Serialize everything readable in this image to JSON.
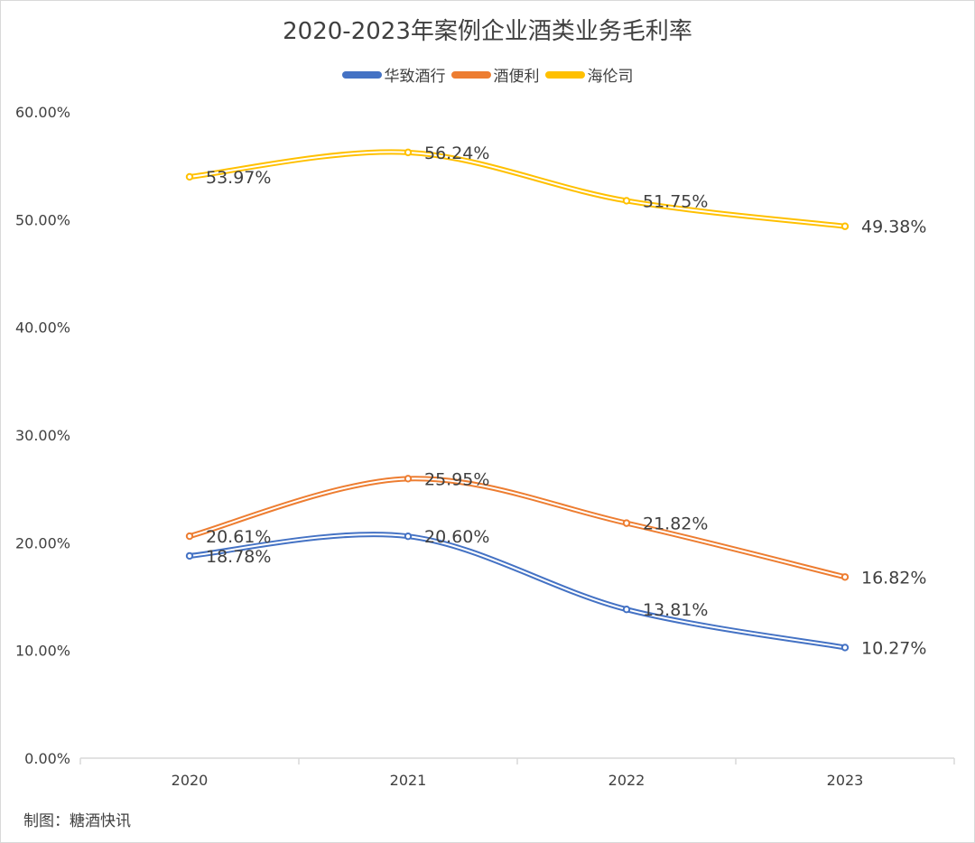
{
  "chart_data": {
    "type": "line",
    "title": "2020-2023年案例企业酒类业务毛利率",
    "categories": [
      "2020",
      "2021",
      "2022",
      "2023"
    ],
    "series": [
      {
        "name": "华致酒行",
        "color": "#4472c4",
        "values": [
          18.78,
          20.6,
          13.81,
          10.27
        ],
        "labels": [
          "18.78%",
          "20.60%",
          "13.81%",
          "10.27%"
        ]
      },
      {
        "name": "酒便利",
        "color": "#ed7d31",
        "values": [
          20.61,
          25.95,
          21.82,
          16.82
        ],
        "labels": [
          "20.61%",
          "25.95%",
          "21.82%",
          "16.82%"
        ]
      },
      {
        "name": "海伦司",
        "color": "#ffc000",
        "values": [
          53.97,
          56.24,
          51.75,
          49.38
        ],
        "labels": [
          "53.97%",
          "56.24%",
          "51.75%",
          "49.38%"
        ]
      }
    ],
    "yticks": [
      "0.00%",
      "10.00%",
      "20.00%",
      "30.00%",
      "40.00%",
      "50.00%",
      "60.00%"
    ],
    "ylim": [
      0,
      60
    ],
    "smooth": true,
    "grid": false,
    "legend_position": "top"
  },
  "footer": {
    "credit": "制图：糖酒快讯"
  }
}
